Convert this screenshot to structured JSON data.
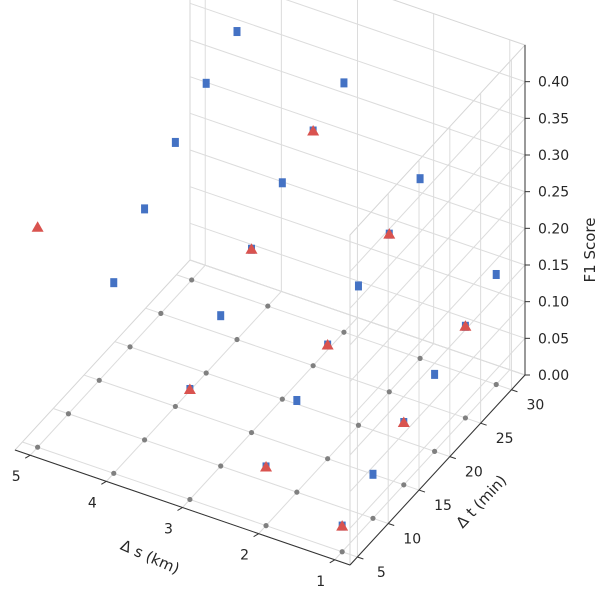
{
  "chart_data": {
    "type": "scatter",
    "projection": "3d",
    "title": "",
    "xlabel": "Δ s (km)",
    "ylabel": "Δ t (min)",
    "zlabel": "F1 Score",
    "xlim": [
      0.8,
      5.2
    ],
    "ylim": [
      3.8,
      32.2
    ],
    "zlim": [
      0.0,
      0.45
    ],
    "xticks": [
      1,
      2,
      3,
      4,
      5
    ],
    "yticks": [
      5,
      10,
      15,
      20,
      25,
      30
    ],
    "zticks": [
      0.0,
      0.05,
      0.1,
      0.15,
      0.2,
      0.25,
      0.3,
      0.35,
      0.4
    ],
    "zticklabels": [
      "0.00",
      "0.05",
      "0.10",
      "0.15",
      "0.20",
      "0.25",
      "0.30",
      "0.35",
      "0.40"
    ],
    "grid": true,
    "legend": null,
    "colors": {
      "series_a": "#808080",
      "series_b": "#4472c4",
      "series_c": "#d9534f"
    },
    "series": [
      {
        "marker": "circle",
        "points": [
          {
            "x": 1,
            "y": 5,
            "z": 0.0
          },
          {
            "x": 1,
            "y": 10,
            "z": 0.0
          },
          {
            "x": 1,
            "y": 15,
            "z": 0.0
          },
          {
            "x": 1,
            "y": 20,
            "z": 0.0
          },
          {
            "x": 1,
            "y": 25,
            "z": 0.0
          },
          {
            "x": 1,
            "y": 30,
            "z": 0.0
          },
          {
            "x": 2,
            "y": 5,
            "z": 0.0
          },
          {
            "x": 2,
            "y": 10,
            "z": 0.0
          },
          {
            "x": 2,
            "y": 15,
            "z": 0.0
          },
          {
            "x": 2,
            "y": 20,
            "z": 0.0
          },
          {
            "x": 2,
            "y": 25,
            "z": 0.0
          },
          {
            "x": 2,
            "y": 30,
            "z": 0.0
          },
          {
            "x": 3,
            "y": 5,
            "z": 0.0
          },
          {
            "x": 3,
            "y": 10,
            "z": 0.0
          },
          {
            "x": 3,
            "y": 15,
            "z": 0.0
          },
          {
            "x": 3,
            "y": 20,
            "z": 0.0
          },
          {
            "x": 3,
            "y": 25,
            "z": 0.0
          },
          {
            "x": 3,
            "y": 30,
            "z": 0.0
          },
          {
            "x": 4,
            "y": 5,
            "z": 0.0
          },
          {
            "x": 4,
            "y": 10,
            "z": 0.0
          },
          {
            "x": 4,
            "y": 15,
            "z": 0.0
          },
          {
            "x": 4,
            "y": 20,
            "z": 0.0
          },
          {
            "x": 4,
            "y": 25,
            "z": 0.0
          },
          {
            "x": 4,
            "y": 30,
            "z": 0.0
          },
          {
            "x": 5,
            "y": 5,
            "z": 0.0
          },
          {
            "x": 5,
            "y": 10,
            "z": 0.0
          },
          {
            "x": 5,
            "y": 15,
            "z": 0.0
          },
          {
            "x": 5,
            "y": 20,
            "z": 0.0
          },
          {
            "x": 5,
            "y": 25,
            "z": 0.0
          },
          {
            "x": 5,
            "y": 30,
            "z": 0.0
          }
        ]
      },
      {
        "marker": "square",
        "points": [
          {
            "x": 1,
            "y": 5,
            "z": 0.035
          },
          {
            "x": 1,
            "y": 10,
            "z": 0.06
          },
          {
            "x": 1,
            "y": 15,
            "z": 0.085
          },
          {
            "x": 1,
            "y": 20,
            "z": 0.105
          },
          {
            "x": 1,
            "y": 25,
            "z": 0.125
          },
          {
            "x": 1,
            "y": 30,
            "z": 0.15
          },
          {
            "x": 2,
            "y": 5,
            "z": 0.08
          },
          {
            "x": 2,
            "y": 10,
            "z": 0.125
          },
          {
            "x": 2,
            "y": 15,
            "z": 0.155
          },
          {
            "x": 2,
            "y": 20,
            "z": 0.19
          },
          {
            "x": 2,
            "y": 25,
            "z": 0.215
          },
          {
            "x": 2,
            "y": 30,
            "z": 0.245
          },
          {
            "x": 3,
            "y": 5,
            "z": 0.15
          },
          {
            "x": 3,
            "y": 10,
            "z": 0.205
          },
          {
            "x": 3,
            "y": 15,
            "z": 0.25
          },
          {
            "x": 3,
            "y": 20,
            "z": 0.295
          },
          {
            "x": 3,
            "y": 25,
            "z": 0.32
          },
          {
            "x": 3,
            "y": 30,
            "z": 0.34
          },
          {
            "x": 4,
            "y": 5,
            "z": 0.26
          },
          {
            "x": 4,
            "y": 10,
            "z": 0.315
          },
          {
            "x": 4,
            "y": 15,
            "z": 0.36
          },
          {
            "x": 4,
            "y": 20,
            "z": 0.395
          },
          {
            "x": 4,
            "y": 25,
            "z": 0.42
          },
          {
            "x": 4,
            "y": 30,
            "z": 0.43
          }
        ]
      },
      {
        "marker": "triangle",
        "points": [
          {
            "x": 1,
            "y": 5,
            "z": 0.035
          },
          {
            "x": 1,
            "y": 15,
            "z": 0.085
          },
          {
            "x": 1,
            "y": 25,
            "z": 0.125
          },
          {
            "x": 2,
            "y": 5,
            "z": 0.08
          },
          {
            "x": 2,
            "y": 15,
            "z": 0.155
          },
          {
            "x": 2,
            "y": 25,
            "z": 0.215
          },
          {
            "x": 3,
            "y": 5,
            "z": 0.15
          },
          {
            "x": 3,
            "y": 15,
            "z": 0.25
          },
          {
            "x": 3,
            "y": 25,
            "z": 0.32
          },
          {
            "x": 5,
            "y": 5,
            "z": 0.3
          }
        ]
      }
    ]
  }
}
